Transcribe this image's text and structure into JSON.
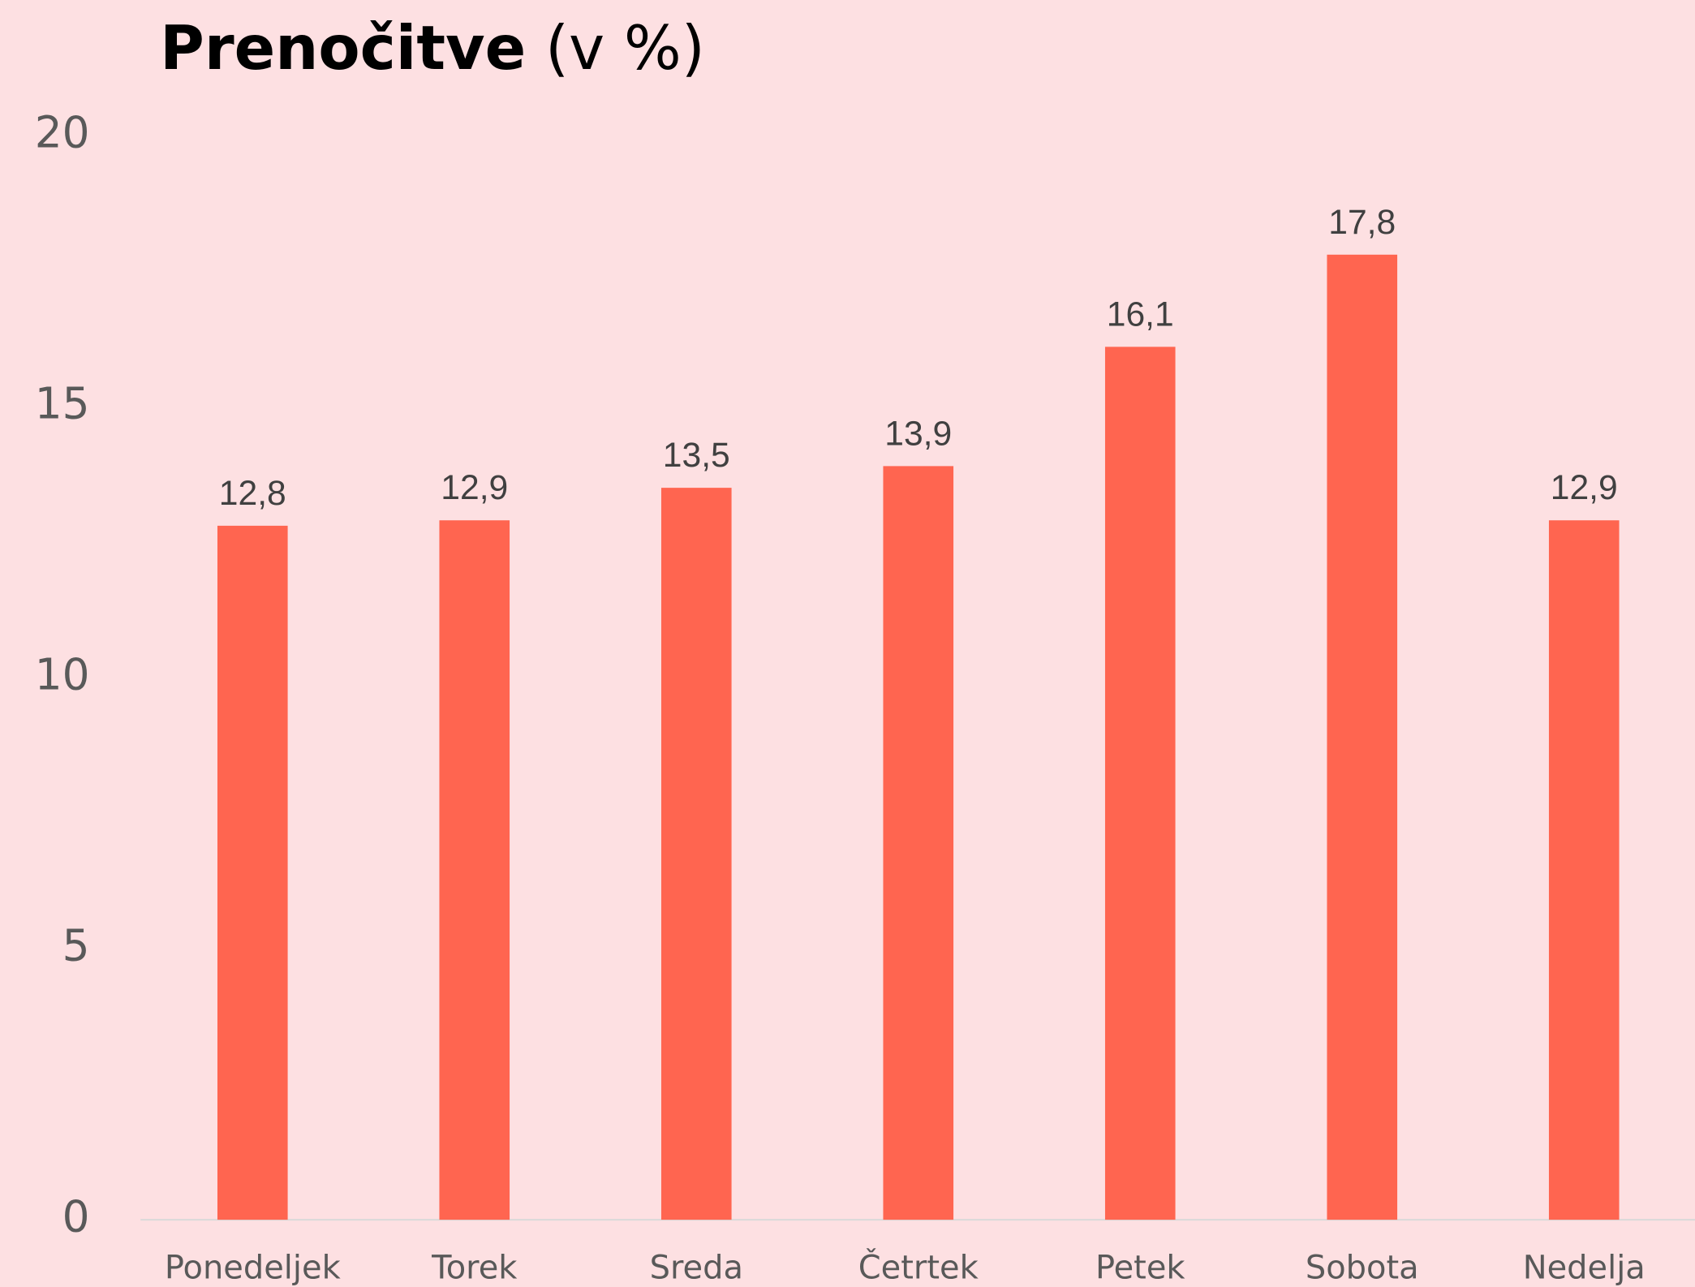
{
  "chart_data": {
    "type": "bar",
    "title": "Prenočitve",
    "title_unit": "(v %)",
    "categories": [
      "Ponedeljek",
      "Torek",
      "Sreda",
      "Četrtek",
      "Petek",
      "Sobota",
      "Nedelja"
    ],
    "values": [
      12.8,
      12.9,
      13.5,
      13.9,
      16.1,
      17.8,
      12.9
    ],
    "value_labels": [
      "12,8",
      "12,9",
      "13,5",
      "13,9",
      "16,1",
      "17,8",
      "12,9"
    ],
    "color": "#ff6550",
    "ylim": [
      0,
      20
    ],
    "yticks": [
      0,
      5,
      10,
      15,
      20
    ],
    "grid": false
  }
}
